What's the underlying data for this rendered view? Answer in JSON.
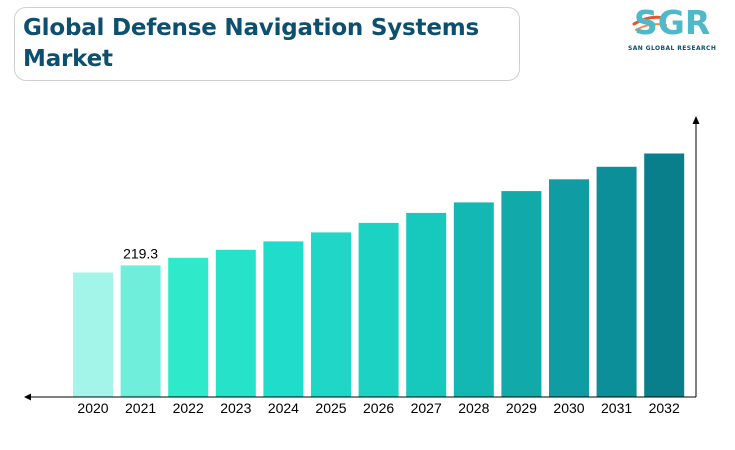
{
  "title": {
    "line1": "Global Defense Navigation Systems",
    "line2": "Market"
  },
  "logo": {
    "mark": "SGR",
    "subtitle": "SAN GLOBAL RESEARCH",
    "colors": {
      "mark": "#4fb8c9",
      "accent": "#e4572e",
      "subtitle": "#0d4f6e"
    }
  },
  "chart_data": {
    "type": "bar",
    "title": "Global Defense Navigation Systems Market",
    "xlabel": "",
    "ylabel": "",
    "categories": [
      "2020",
      "2021",
      "2022",
      "2023",
      "2024",
      "2025",
      "2026",
      "2027",
      "2028",
      "2029",
      "2030",
      "2031",
      "2032"
    ],
    "values": [
      207.5,
      219.3,
      232.0,
      245.3,
      259.4,
      274.3,
      290.1,
      306.8,
      324.4,
      343.1,
      362.8,
      383.7,
      405.8
    ],
    "data_labels": [
      {
        "index": 1,
        "text": "219.3"
      }
    ],
    "ylim": [
      0,
      465
    ],
    "grid": false,
    "legend": "none",
    "bar_colors": [
      "#a3f5ea",
      "#6eeedb",
      "#2eeacb",
      "#25e2c8",
      "#20dccb",
      "#1fd6c7",
      "#1bd2c3",
      "#17c9bc",
      "#14b8b3",
      "#12a9a9",
      "#109ca3",
      "#0d8f99",
      "#0a7f8c"
    ],
    "axis_color": "#000000"
  }
}
